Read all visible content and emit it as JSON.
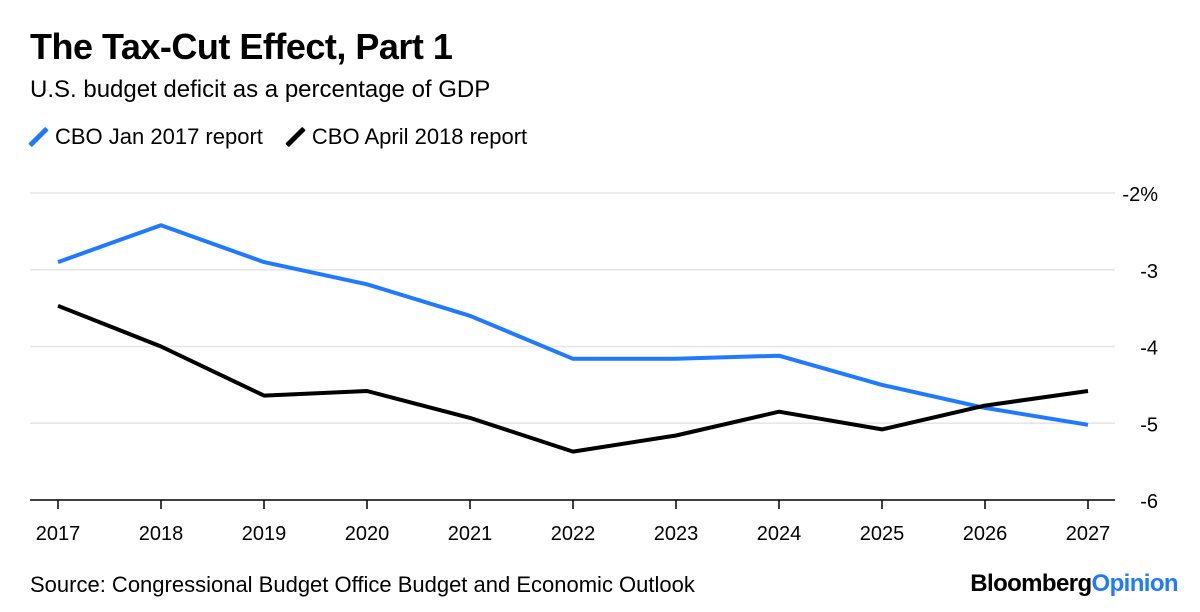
{
  "header": {
    "title": "The Tax-Cut Effect, Part 1",
    "subtitle": "U.S. budget deficit as a percentage of GDP"
  },
  "chart_data": {
    "type": "line",
    "title": "The Tax-Cut Effect, Part 1",
    "subtitle": "U.S. budget deficit as a percentage of GDP",
    "xlabel": "",
    "ylabel": "",
    "x": [
      "2017",
      "2018",
      "2019",
      "2020",
      "2021",
      "2022",
      "2023",
      "2024",
      "2025",
      "2026",
      "2027"
    ],
    "ylim": [
      -6,
      -2
    ],
    "yticks": [
      -2,
      -3,
      -4,
      -5,
      -6
    ],
    "ytick_labels": [
      "-2%",
      "-3",
      "-4",
      "-5",
      "-6"
    ],
    "grid": true,
    "legend_position": "top-left",
    "series": [
      {
        "name": "CBO Jan 2017 report",
        "color": "#1f7aff",
        "values": [
          -2.9,
          -2.42,
          -2.9,
          -3.19,
          -3.6,
          -4.16,
          -4.16,
          -4.12,
          -4.5,
          -4.8,
          -5.02
        ]
      },
      {
        "name": "CBO April 2018 report",
        "color": "#000000",
        "values": [
          -3.47,
          -4.0,
          -4.64,
          -4.58,
          -4.93,
          -5.37,
          -5.16,
          -4.85,
          -5.08,
          -4.77,
          -4.58
        ]
      }
    ]
  },
  "footer": {
    "source": "Source: Congressional Budget Office Budget and Economic Outlook",
    "brand_main": "Bloomberg",
    "brand_accent": "Opinion"
  }
}
